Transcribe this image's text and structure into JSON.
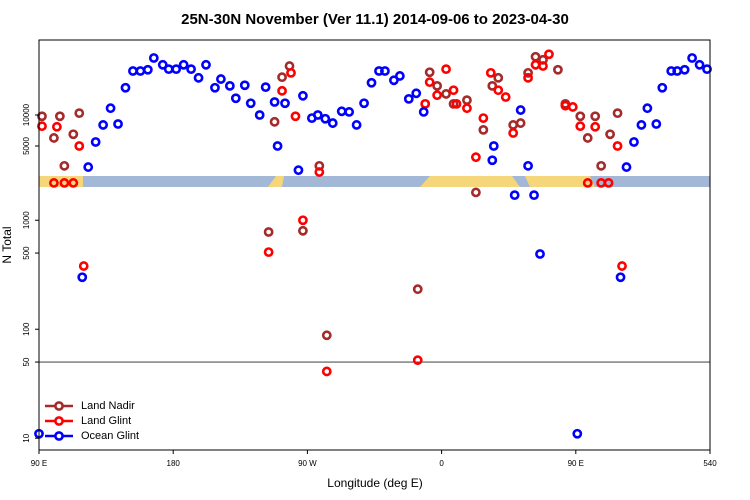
{
  "chart_data": [
    {
      "type": "scatter",
      "title": "25N-30N November (Ver 11.1)   2014-09-06 to 2023-04-30",
      "xlim": [
        90,
        540
      ],
      "ylim": [
        0,
        22100
      ],
      "yticks": [
        5000,
        10000
      ],
      "series": [
        {
          "name": "Land Nadir",
          "color": "#a52a2a",
          "x": [
            92,
            100,
            104,
            107,
            113,
            117,
            248,
            253,
            258,
            278,
            352,
            357,
            363,
            368,
            377,
            388,
            394,
            398,
            408,
            413,
            418,
            423,
            428,
            438,
            443,
            453,
            458,
            463,
            467,
            473,
            478
          ],
          "values": [
            9800,
            6300,
            9800,
            1800,
            6900,
            10300,
            8900,
            16100,
            17900,
            1800,
            16900,
            14700,
            13400,
            11800,
            12400,
            7600,
            14700,
            16000,
            8400,
            8700,
            16800,
            19400,
            18900,
            17300,
            11800,
            9800,
            6300,
            9800,
            1800,
            6900,
            10300
          ]
        },
        {
          "name": "Land Glint",
          "color": "#ff0000",
          "x": [
            92,
            102,
            117,
            253,
            259,
            262,
            278,
            349,
            352,
            357,
            363,
            368,
            370,
            377,
            383,
            388,
            393,
            398,
            403,
            408,
            418,
            423,
            428,
            432,
            443,
            448,
            453,
            463,
            478
          ],
          "values": [
            8200,
            8100,
            5000,
            13900,
            16800,
            9800,
            800,
            11800,
            15300,
            13200,
            17400,
            14000,
            11800,
            11100,
            3200,
            9500,
            16800,
            14000,
            12900,
            7100,
            16000,
            18100,
            17900,
            19800,
            11500,
            11300,
            8200,
            8100,
            5000
          ]
        },
        {
          "name": "Ocean Glint",
          "color": "#0000ff",
          "x": [
            123,
            128,
            133,
            138,
            143,
            148,
            153,
            158,
            163,
            167,
            173,
            177,
            182,
            187,
            192,
            197,
            202,
            208,
            212,
            218,
            222,
            228,
            232,
            238,
            242,
            248,
            250,
            255,
            264,
            267,
            273,
            277,
            282,
            287,
            293,
            298,
            303,
            308,
            313,
            318,
            322,
            328,
            332,
            338,
            343,
            348,
            395,
            394,
            413,
            418,
            484,
            489,
            494,
            498,
            504,
            508,
            514,
            518,
            523,
            528,
            533,
            538
          ],
          "values": [
            1600,
            5650,
            8400,
            11100,
            8550,
            14400,
            17100,
            17100,
            17300,
            19200,
            18100,
            17400,
            17400,
            18100,
            17400,
            16000,
            18100,
            14400,
            15800,
            14700,
            12700,
            14800,
            11900,
            10000,
            14500,
            12100,
            5000,
            11900,
            1100,
            13100,
            9500,
            10000,
            9400,
            8700,
            10600,
            10500,
            8400,
            11900,
            15200,
            17100,
            17100,
            15600,
            16300,
            12600,
            13500,
            10500,
            5000,
            2700,
            10800,
            1800,
            1600,
            5650,
            8400,
            11100,
            8550,
            14400,
            17100,
            17100,
            17300,
            19200,
            18100,
            17400
          ]
        }
      ]
    },
    {
      "type": "scatter",
      "xlabel": "Longitude (deg E)",
      "ylabel": "N Total",
      "xlim": [
        90,
        540
      ],
      "xticks": [
        {
          "value": 90,
          "label": "90 E"
        },
        180,
        {
          "value": 270,
          "label": "90 W"
        },
        {
          "value": 360,
          "label": "0"
        },
        {
          "value": 450,
          "label": "90 E"
        },
        540
      ],
      "ylim": [
        7.8,
        2600
      ],
      "log": true,
      "yticks": [
        10,
        50,
        100,
        500,
        1000
      ],
      "hline": 50,
      "legend": "bottom-left",
      "series": [
        {
          "name": "Land Nadir",
          "color": "#a52a2a",
          "x": [
            244,
            267,
            283,
            344,
            383
          ],
          "values": [
            780,
            800,
            88,
            233,
            1800
          ]
        },
        {
          "name": "Land Glint",
          "color": "#ff0000",
          "x": [
            100,
            107,
            113,
            120,
            244,
            267,
            283,
            344,
            458,
            467,
            472,
            481
          ],
          "values": [
            2200,
            2200,
            2200,
            380,
            510,
            1000,
            41,
            52,
            2200,
            2200,
            2200,
            380
          ]
        },
        {
          "name": "Ocean Glint",
          "color": "#0000ff",
          "x": [
            90,
            119,
            409,
            422,
            426,
            451,
            480
          ],
          "values": [
            11,
            300,
            1700,
            1700,
            490,
            11,
            300
          ]
        }
      ]
    }
  ]
}
